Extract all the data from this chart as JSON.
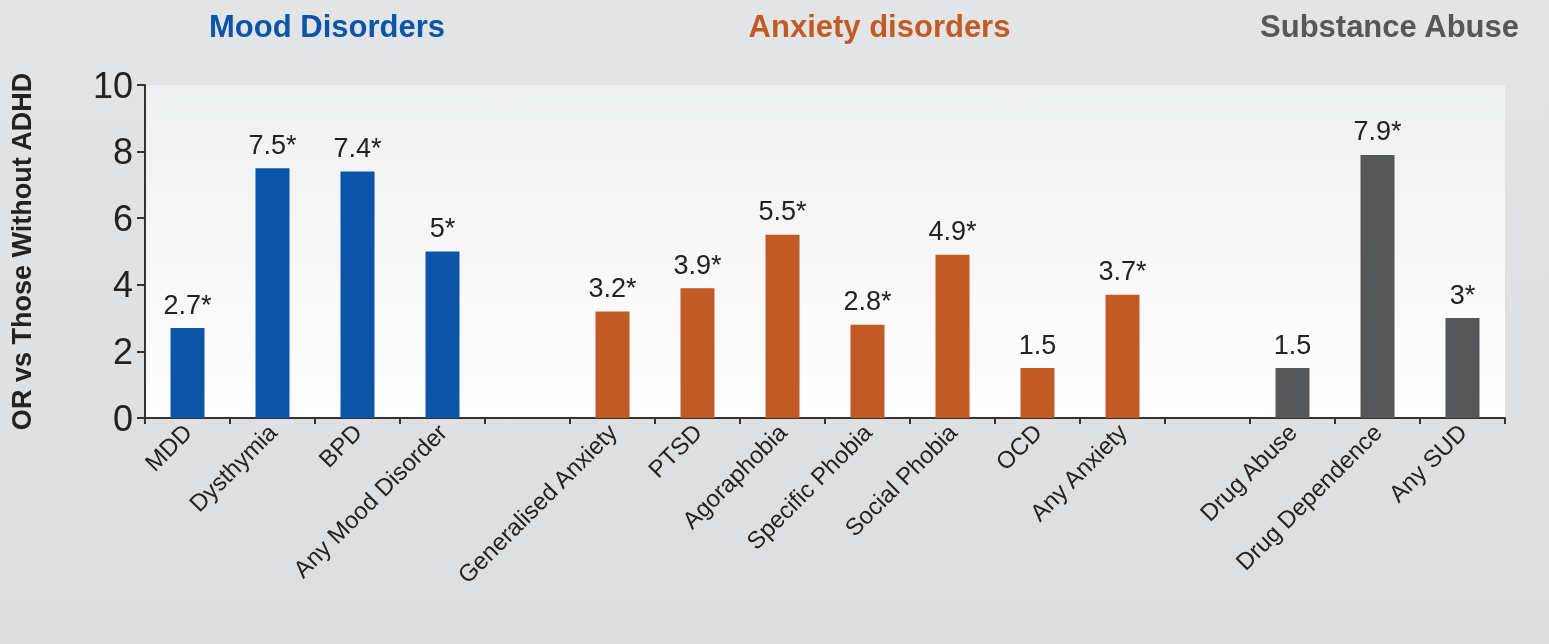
{
  "chart_data": {
    "type": "bar",
    "ylabel": "OR vs Those Without ADHD",
    "categories": [
      "MDD",
      "Dysthymia",
      "BPD",
      "Any Mood Disorder",
      null,
      "Generalised Anxiety",
      "PTSD",
      "Agoraphobia",
      "Specific Phobia",
      "Social Phobia",
      "OCD",
      "Any Anxiety",
      null,
      "Drug Abuse",
      "Drug Dependence",
      "Any SUD"
    ],
    "values": [
      2.7,
      7.5,
      7.4,
      5,
      null,
      3.2,
      3.9,
      5.5,
      2.8,
      4.9,
      1.5,
      3.7,
      null,
      1.5,
      7.9,
      3
    ],
    "value_labels": [
      "2.7*",
      "7.5*",
      "7.4*",
      "5*",
      null,
      "3.2*",
      "3.9*",
      "5.5*",
      "2.8*",
      "4.9*",
      "1.5",
      "3.7*",
      null,
      "1.5",
      "7.9*",
      "3*"
    ],
    "colors": [
      "#0b55a8",
      "#0b55a8",
      "#0b55a8",
      "#0b55a8",
      null,
      "#c25a24",
      "#c25a24",
      "#c25a24",
      "#c25a24",
      "#c25a24",
      "#c25a24",
      "#c25a24",
      null,
      "#565759",
      "#565759",
      "#565759"
    ],
    "annotations": [
      "Mood Disorders",
      "Anxiety disorders",
      "Substance Abuse"
    ],
    "ylim": [
      0,
      10
    ],
    "yticks": [
      0,
      2,
      4,
      6,
      8,
      10
    ],
    "grid": false
  }
}
